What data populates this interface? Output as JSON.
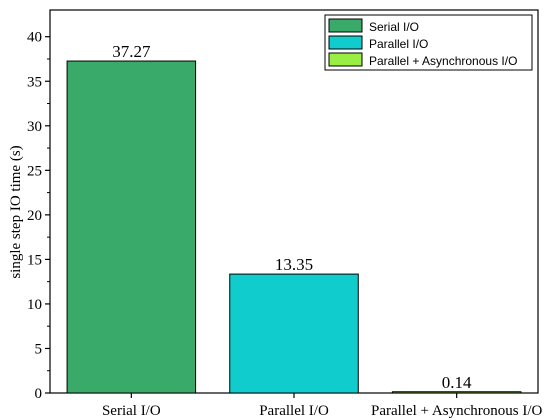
{
  "chart_data": {
    "type": "bar",
    "categories": [
      "Serial I/O",
      "Parallel I/O",
      "Parallel + Asynchronous I/O"
    ],
    "values": [
      37.27,
      13.35,
      0.14
    ],
    "value_labels": [
      "37.27",
      "13.35",
      "0.14"
    ],
    "colors": [
      "#3aaa6a",
      "#10cccc",
      "#99ee44"
    ],
    "title": "",
    "xlabel": "",
    "ylabel": "single step IO time (s)",
    "ylim": [
      0,
      43
    ],
    "yticks": [
      0,
      5,
      10,
      15,
      20,
      25,
      30,
      35,
      40
    ],
    "legend": {
      "placement": "top-right",
      "entries": [
        "Serial I/O",
        "Parallel I/O",
        "Parallel + Asynchronous I/O"
      ]
    }
  }
}
